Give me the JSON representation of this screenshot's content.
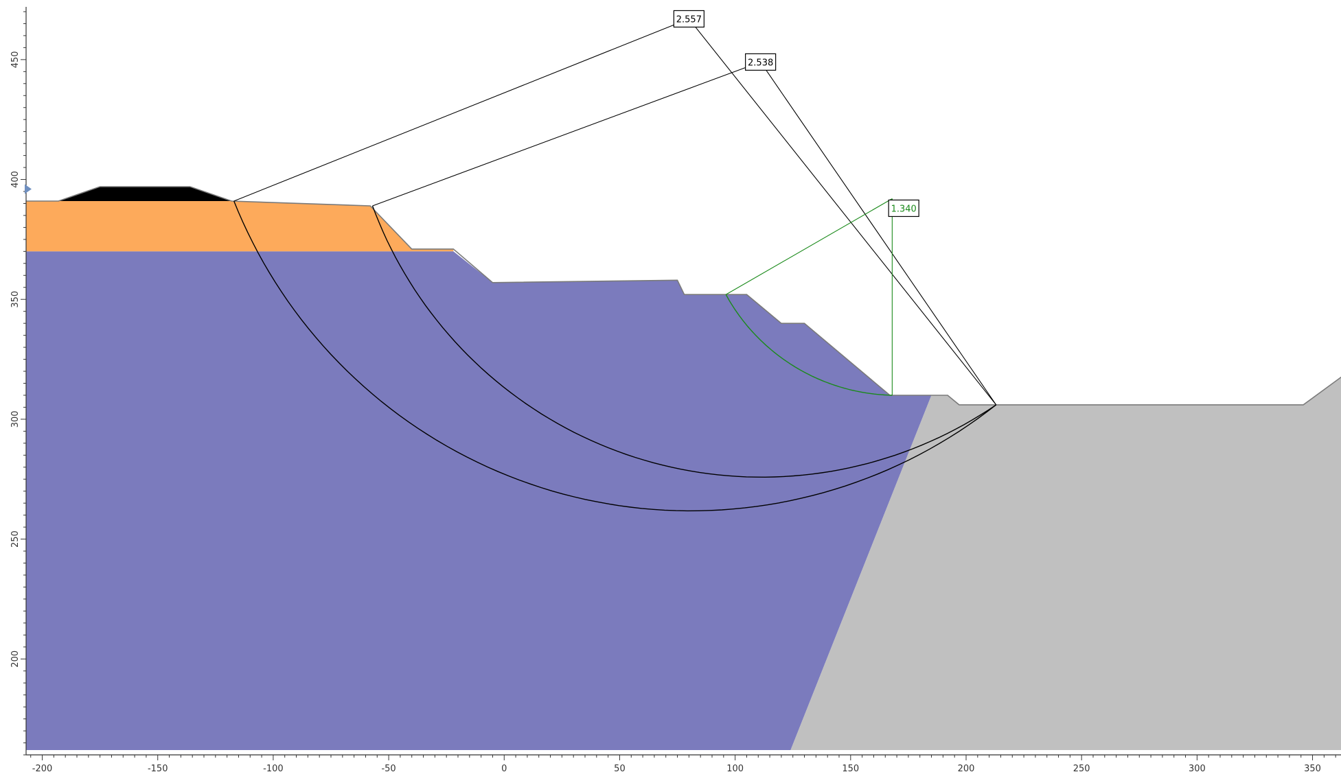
{
  "chart_data": {
    "type": "slope_stability_section",
    "xlim": [
      -207,
      365
    ],
    "ylim": [
      160,
      472
    ],
    "x_ticks": [
      "-200",
      "-150",
      "-100",
      "-50",
      "0",
      "50",
      "100",
      "150",
      "200",
      "250",
      "300",
      "350"
    ],
    "x_tick_values": [
      -200,
      -150,
      -100,
      -50,
      0,
      50,
      100,
      150,
      200,
      250,
      300,
      350
    ],
    "y_ticks": [
      "200",
      "250",
      "300",
      "350",
      "400",
      "450"
    ],
    "y_tick_values": [
      200,
      250,
      300,
      350,
      400,
      450
    ],
    "colors": {
      "background": "#ffffff",
      "axis": "#333333",
      "fill_layer": "#FDAA5B",
      "main_material": "#7B7BBD",
      "bedrock": "#C0C0C0",
      "dump_cap": "#000000",
      "boundary": "#7a7a7a",
      "slip_surface": "#000000",
      "critical_surface": "#1A8A1A",
      "boundary_marker": "#6F8FBF"
    },
    "regions": [
      {
        "name": "main-material",
        "points": [
          [
            -207,
            370
          ],
          [
            -88,
            370
          ],
          [
            -40,
            370
          ],
          [
            -22,
            370
          ],
          [
            -5,
            357
          ],
          [
            75,
            358
          ],
          [
            78,
            352
          ],
          [
            95,
            352
          ],
          [
            105,
            352
          ],
          [
            120,
            340
          ],
          [
            130,
            340
          ],
          [
            167,
            310
          ],
          [
            185,
            310
          ],
          [
            124,
            162
          ],
          [
            -207,
            162
          ]
        ]
      },
      {
        "name": "bedrock",
        "points": [
          [
            124,
            162
          ],
          [
            185,
            310
          ],
          [
            192,
            310
          ],
          [
            197,
            306
          ],
          [
            213,
            306
          ],
          [
            250,
            306
          ],
          [
            300,
            306
          ],
          [
            346,
            306
          ],
          [
            363,
            318
          ],
          [
            363,
            162
          ]
        ]
      },
      {
        "name": "fill-layer",
        "points": [
          [
            -207,
            391
          ],
          [
            -118,
            391
          ],
          [
            -58,
            389
          ],
          [
            -40,
            371
          ],
          [
            -22,
            371
          ],
          [
            -22,
            370
          ],
          [
            -207,
            370
          ]
        ]
      },
      {
        "name": "dump-cap",
        "points": [
          [
            -193,
            391
          ],
          [
            -175,
            397
          ],
          [
            -136,
            397
          ],
          [
            -118,
            391
          ]
        ]
      }
    ],
    "ground_surface": [
      [
        -207,
        391
      ],
      [
        -193,
        391
      ],
      [
        -175,
        397
      ],
      [
        -136,
        397
      ],
      [
        -118,
        391
      ],
      [
        -58,
        389
      ],
      [
        -40,
        371
      ],
      [
        -22,
        371
      ],
      [
        -5,
        357
      ],
      [
        75,
        358
      ],
      [
        78,
        352
      ],
      [
        95,
        352
      ],
      [
        105,
        352
      ],
      [
        120,
        340
      ],
      [
        130,
        340
      ],
      [
        167,
        310
      ],
      [
        185,
        310
      ],
      [
        192,
        310
      ],
      [
        197,
        306
      ],
      [
        213,
        306
      ],
      [
        250,
        306
      ],
      [
        300,
        306
      ],
      [
        346,
        306
      ],
      [
        363,
        318
      ]
    ],
    "slip_surfaces": [
      {
        "label": "2.557",
        "critical": false,
        "label_pos": [
          80,
          467
        ],
        "center": [
          80,
          467
        ],
        "entry": [
          -117,
          391
        ],
        "exit": [
          213,
          306
        ]
      },
      {
        "label": "2.538",
        "critical": false,
        "label_pos": [
          111,
          449
        ],
        "center": [
          111,
          449
        ],
        "entry": [
          -57,
          389
        ],
        "exit": [
          213,
          306
        ]
      },
      {
        "label": "1.340",
        "critical": true,
        "label_pos": [
          173,
          388
        ],
        "center": [
          168,
          392
        ],
        "entry": [
          96,
          352
        ],
        "exit": [
          168,
          310
        ]
      }
    ],
    "boundary_markers": [
      {
        "side": "left",
        "x": -207,
        "y": 396
      },
      {
        "side": "right",
        "x": 365,
        "y": 321
      }
    ]
  }
}
